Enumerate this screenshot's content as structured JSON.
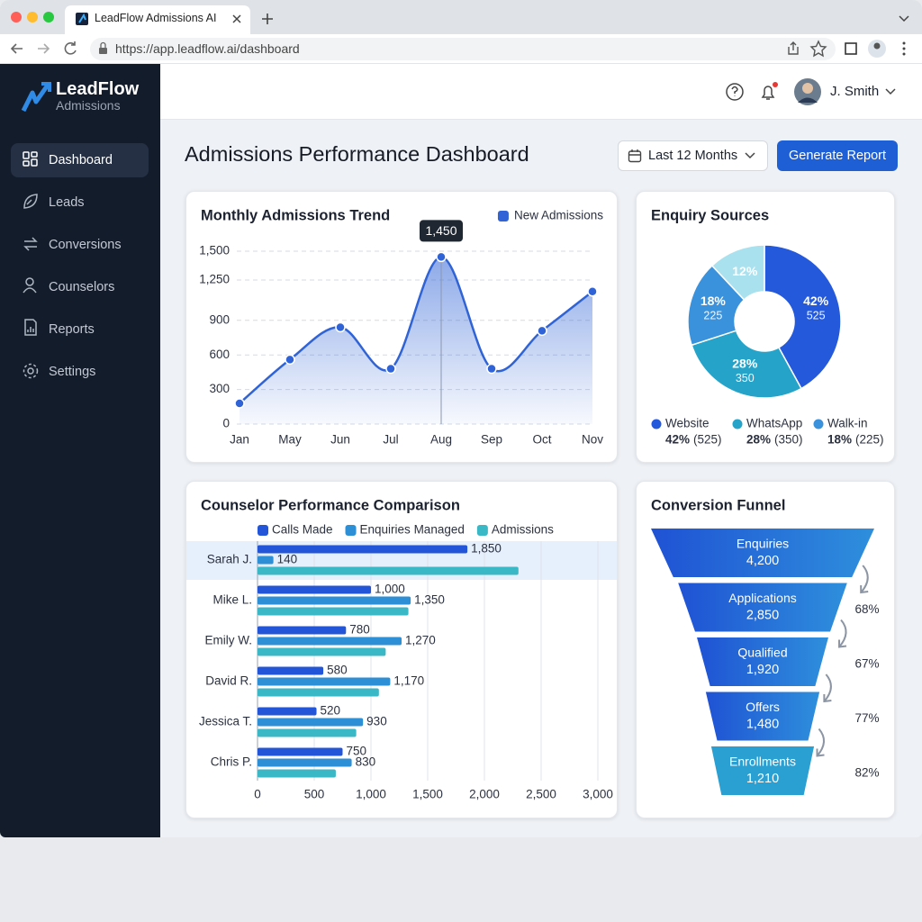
{
  "browser": {
    "tab_title": "LeadFlow Admissions AI",
    "url": "https://app.leadflow.ai/dashboard"
  },
  "sidebar": {
    "brand": "LeadFlow",
    "subtitle": "Admissions",
    "nav": [
      "Dashboard",
      "Leads",
      "Conversions",
      "Counselors",
      "Reports",
      "Settings"
    ]
  },
  "header": {
    "user": "J. Smith"
  },
  "page": {
    "title": "Admissions Performance Dashboard",
    "date_range": "Last 12 Months",
    "button": "Generate Report"
  },
  "chart_data": [
    {
      "type": "line",
      "title": "Monthly Admissions Trend",
      "categories": [
        "Jan",
        "May",
        "Jun",
        "Jul",
        "Aug",
        "Sep",
        "Oct",
        "Nov"
      ],
      "series": [
        {
          "name": "New Admissions",
          "color": "#2f63d6",
          "values": [
            180,
            560,
            840,
            480,
            1450,
            480,
            810,
            1150
          ],
          "value_labels": [
            null,
            null,
            null,
            null,
            "1,450",
            null,
            null,
            null
          ]
        }
      ],
      "ylim": [
        0,
        1500
      ],
      "yticks": [
        0,
        300,
        600,
        900,
        {
          "value": 1250,
          "label": "1,250"
        },
        {
          "value": 1500,
          "label": "1,500"
        }
      ],
      "grid": true,
      "legend": "top-right"
    },
    {
      "type": "pie",
      "title": "Enquiry Sources",
      "donut": true,
      "categories": [
        "Website",
        "WhatsApp",
        "Walk-in",
        null
      ],
      "values": [
        42,
        28,
        18,
        12
      ],
      "value_labels": [
        "42%",
        "28%",
        "18%",
        "12%"
      ],
      "counts": [
        525,
        350,
        225,
        null
      ],
      "count_labels": [
        "(525)",
        "(350)",
        "(225)",
        null
      ],
      "colors": [
        "#2459dc",
        "#25a3c9",
        "#3a92dc",
        "#a9e1ee"
      ],
      "legend": "bottom"
    },
    {
      "type": "bar",
      "horizontal": true,
      "title": "Counselor Performance Comparison",
      "categories": [
        "Sarah J.",
        "Mike L.",
        "Emily W.",
        "David R.",
        "Jessica T.",
        "Chris P."
      ],
      "series": [
        {
          "name": "Calls Made",
          "color": "#2355d8",
          "values": [
            1850,
            1000,
            780,
            580,
            520,
            750
          ],
          "value_labels": [
            "1,850",
            "1,000",
            "780",
            "580",
            "520",
            "750"
          ]
        },
        {
          "name": "Enquiries Managed",
          "color": "#2d8fd6",
          "values": [
            140,
            1350,
            1270,
            1170,
            930,
            830
          ],
          "value_labels": [
            "140",
            "1,350",
            "1,270",
            "1,170",
            "930",
            "830"
          ]
        },
        {
          "name": "Admissions",
          "color": "#3bb8c6",
          "values": [
            2300,
            1330,
            1130,
            1070,
            870,
            690
          ]
        }
      ],
      "xlim": [
        0,
        3000
      ],
      "xticks": [
        0,
        500,
        {
          "value": 1000,
          "label": "1,000"
        },
        {
          "value": 1500,
          "label": "1,500"
        },
        {
          "value": 2000,
          "label": "2,000"
        },
        {
          "value": 2500,
          "label": "2,500"
        },
        {
          "value": 3000,
          "label": "3,000"
        }
      ],
      "grid": true,
      "legend": "top"
    },
    {
      "type": "funnel",
      "title": "Conversion Funnel",
      "color": "#2259d8",
      "categories": [
        "Enquiries",
        "Applications",
        "Qualified",
        "Offers",
        "Enrollments"
      ],
      "values": [
        4200,
        2850,
        1920,
        1480,
        1210
      ],
      "value_labels": [
        "4,200",
        "2,850",
        "1,920",
        "1,480",
        "1,210"
      ],
      "rates": [
        68,
        67,
        77,
        82
      ],
      "rate_labels": [
        "68%",
        "67%",
        "77%",
        "82%"
      ]
    }
  ]
}
